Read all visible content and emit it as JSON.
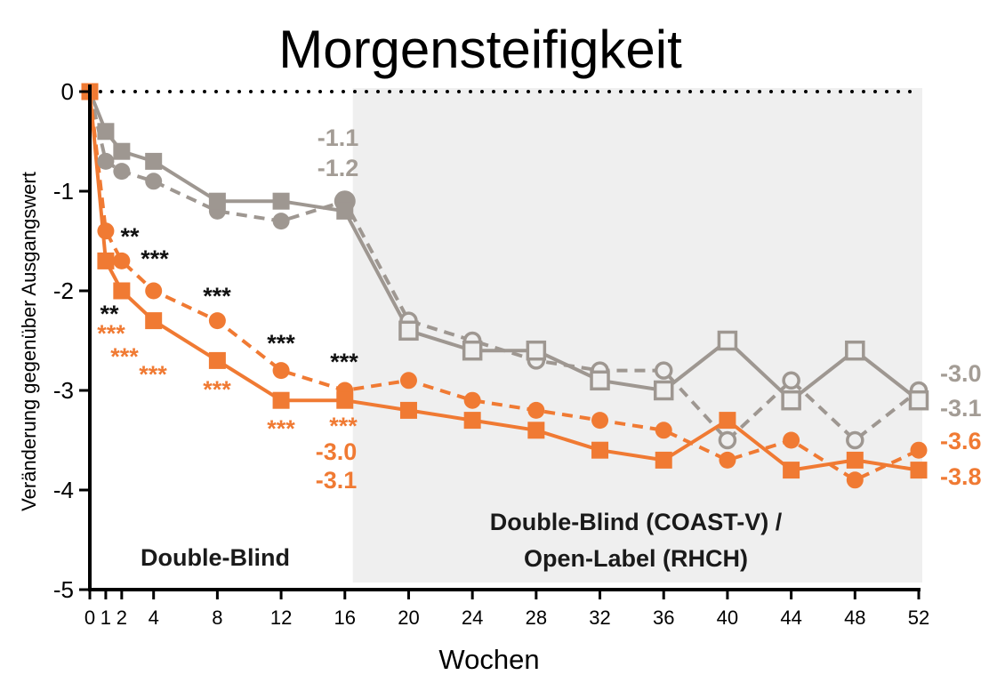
{
  "chart_data": {
    "type": "line",
    "title": "Morgensteifigkeit",
    "xlabel": "Wochen",
    "ylabel": "Veränderung gegenüber Ausgangswert",
    "xlim": [
      0,
      52
    ],
    "ylim": [
      -5,
      0
    ],
    "x_ticks": [
      "0",
      "1",
      "2",
      "4",
      "8",
      "12",
      "16",
      "20",
      "24",
      "28",
      "32",
      "36",
      "40",
      "44",
      "48",
      "52"
    ],
    "y_ticks": [
      "0",
      "-1",
      "-2",
      "-3",
      "-4",
      "-5"
    ],
    "shaded_region": {
      "x_from": 16.5,
      "x_to": 52,
      "color": "#efefef"
    },
    "region_labels": [
      {
        "text": "Double-Blind",
        "lines": [
          "Double-Blind"
        ]
      },
      {
        "text": "Double-Blind (COAST-V) / Open-Label (RHCH)",
        "lines": [
          "Double-Blind (COAST-V) /",
          "Open-Label (RHCH)"
        ]
      }
    ],
    "series": [
      {
        "color": "#9e9791",
        "marker": "square",
        "line": "solid",
        "x": [
          0,
          1,
          2,
          4,
          8,
          12,
          16,
          20,
          24,
          28,
          32,
          36,
          40,
          44,
          48,
          52
        ],
        "values": [
          0,
          -0.4,
          -0.6,
          -0.7,
          -1.1,
          -1.1,
          -1.2,
          -2.4,
          -2.6,
          -2.6,
          -2.9,
          -3.0,
          -2.5,
          -3.1,
          -2.6,
          -3.1
        ]
      },
      {
        "color": "#9e9791",
        "marker": "circle",
        "line": "dashed",
        "x": [
          0,
          1,
          2,
          4,
          8,
          12,
          16,
          20,
          24,
          28,
          32,
          36,
          40,
          44,
          48,
          52
        ],
        "values": [
          0,
          -0.7,
          -0.8,
          -0.9,
          -1.2,
          -1.3,
          -1.1,
          -2.3,
          -2.5,
          -2.7,
          -2.8,
          -2.8,
          -3.5,
          -2.9,
          -3.5,
          -3.0
        ]
      },
      {
        "color": "#f07a33",
        "marker": "square",
        "line": "solid",
        "x": [
          0,
          1,
          2,
          4,
          8,
          12,
          16,
          20,
          24,
          28,
          32,
          36,
          40,
          44,
          48,
          52
        ],
        "values": [
          0,
          -1.7,
          -2.0,
          -2.3,
          -2.7,
          -3.1,
          -3.1,
          -3.2,
          -3.3,
          -3.4,
          -3.6,
          -3.7,
          -3.3,
          -3.8,
          -3.7,
          -3.8
        ]
      },
      {
        "color": "#f07a33",
        "marker": "circle",
        "line": "dashed",
        "x": [
          0,
          1,
          2,
          4,
          8,
          12,
          16,
          20,
          24,
          28,
          32,
          36,
          40,
          44,
          48,
          52
        ],
        "values": [
          0,
          -1.4,
          -1.7,
          -2.0,
          -2.3,
          -2.8,
          -3.0,
          -2.9,
          -3.1,
          -3.2,
          -3.3,
          -3.4,
          -3.7,
          -3.5,
          -3.9,
          -3.6
        ]
      }
    ],
    "significance": {
      "black": [
        {
          "x": 1,
          "text": "**"
        },
        {
          "x": 2,
          "text": "**"
        },
        {
          "x": 4,
          "text": "***"
        },
        {
          "x": 8,
          "text": "***"
        },
        {
          "x": 12,
          "text": "***"
        },
        {
          "x": 16,
          "text": "***"
        }
      ],
      "orange": [
        {
          "x": 1,
          "text": "***"
        },
        {
          "x": 2,
          "text": "***"
        },
        {
          "x": 4,
          "text": "***"
        },
        {
          "x": 8,
          "text": "***"
        },
        {
          "x": 12,
          "text": "***"
        },
        {
          "x": 16,
          "text": "***"
        }
      ]
    },
    "value_labels": {
      "week16_gray": [
        "-1.1",
        "-1.2"
      ],
      "week16_orange": [
        "-3.0",
        "-3.1"
      ],
      "week52_gray": [
        "-3.0",
        "-3.1"
      ],
      "week52_orange": [
        "-3.6",
        "-3.8"
      ]
    },
    "colors": {
      "gray": "#9e9791",
      "orange": "#f07a33",
      "axis": "#000000"
    }
  }
}
